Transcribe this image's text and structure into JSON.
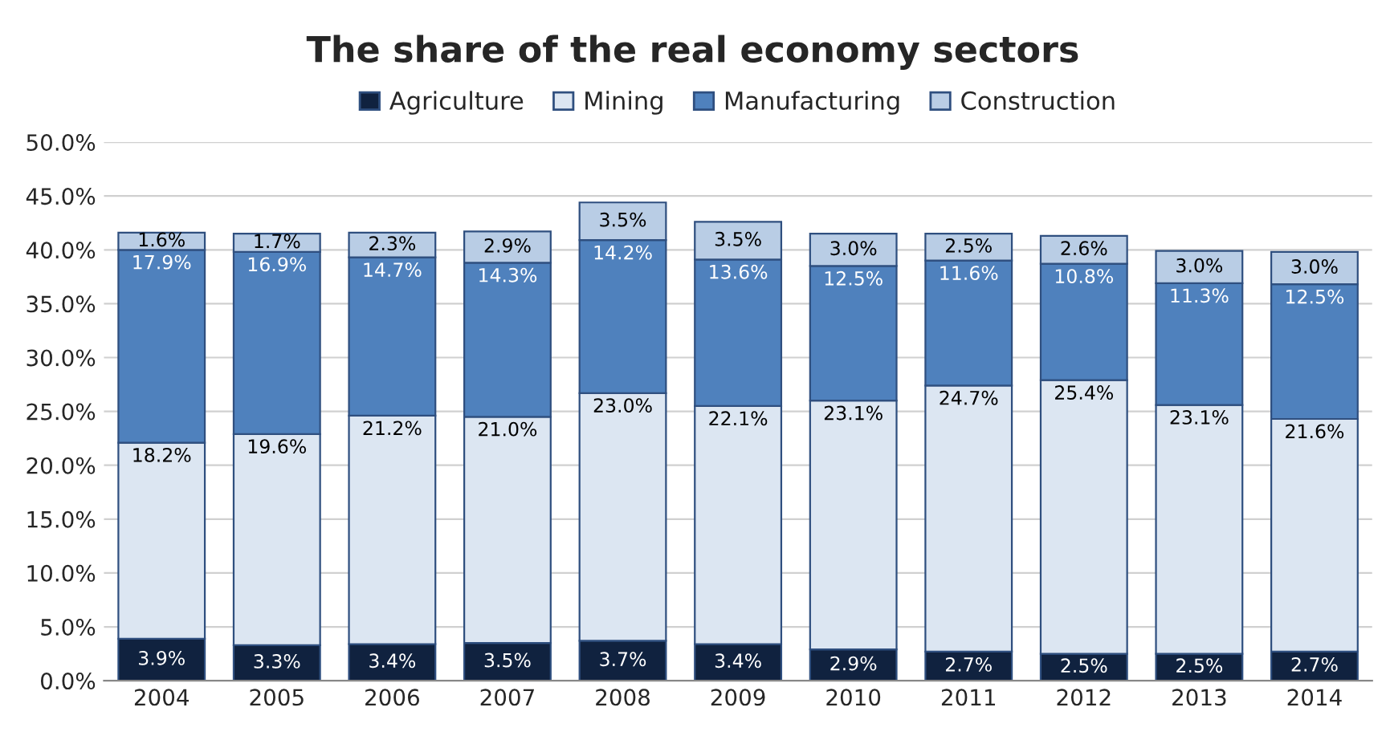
{
  "chart_data": {
    "type": "bar",
    "title": "The share of the real economy sectors",
    "stacked": true,
    "legend": "top",
    "grid": "y",
    "categories": [
      "2004",
      "2005",
      "2006",
      "2007",
      "2008",
      "2009",
      "2010",
      "2011",
      "2012",
      "2013",
      "2014"
    ],
    "ylim": [
      0,
      50
    ],
    "yticks": [
      {
        "value": 0,
        "label": "0.0%"
      },
      {
        "value": 5,
        "label": "5.0%"
      },
      {
        "value": 10,
        "label": "10.0%"
      },
      {
        "value": 15,
        "label": "15.0%"
      },
      {
        "value": 20,
        "label": "20.0%"
      },
      {
        "value": 25,
        "label": "25.0%"
      },
      {
        "value": 30,
        "label": "30.0%"
      },
      {
        "value": 35,
        "label": "35.0%"
      },
      {
        "value": 40,
        "label": "40.0%"
      },
      {
        "value": 45,
        "label": "45.0%"
      },
      {
        "value": 50,
        "label": "50.0%"
      }
    ],
    "series": [
      {
        "name": "Agriculture",
        "color": "#10223f",
        "values": [
          3.9,
          3.3,
          3.4,
          3.5,
          3.7,
          3.4,
          2.9,
          2.7,
          2.5,
          2.5,
          2.7
        ],
        "value_labels": [
          "3.9%",
          "3.3%",
          "3.4%",
          "3.5%",
          "3.7%",
          "3.4%",
          "2.9%",
          "2.7%",
          "2.5%",
          "2.5%",
          "2.7%"
        ]
      },
      {
        "name": "Mining",
        "color": "#dce6f2",
        "values": [
          18.2,
          19.6,
          21.2,
          21.0,
          23.0,
          22.1,
          23.1,
          24.7,
          25.4,
          23.1,
          21.6
        ],
        "value_labels": [
          "18.2%",
          "19.6%",
          "21.2%",
          "21.0%",
          "23.0%",
          "22.1%",
          "23.1%",
          "24.7%",
          "25.4%",
          "23.1%",
          "21.6%"
        ]
      },
      {
        "name": "Manufacturing",
        "color": "#4f81bd",
        "values": [
          17.9,
          16.9,
          14.7,
          14.3,
          14.2,
          13.6,
          12.5,
          11.6,
          10.8,
          11.3,
          12.5
        ],
        "value_labels": [
          "17.9%",
          "16.9%",
          "14.7%",
          "14.3%",
          "14.2%",
          "13.6%",
          "12.5%",
          "11.6%",
          "10.8%",
          "11.3%",
          "12.5%"
        ]
      },
      {
        "name": "Construction",
        "color": "#b9cde5",
        "values": [
          1.6,
          1.7,
          2.3,
          2.9,
          3.5,
          3.5,
          3.0,
          2.5,
          2.6,
          3.0,
          3.0
        ],
        "value_labels": [
          "1.6%",
          "1.7%",
          "2.3%",
          "2.9%",
          "3.5%",
          "3.5%",
          "3.0%",
          "2.5%",
          "2.6%",
          "3.0%",
          "3.0%"
        ]
      }
    ]
  }
}
